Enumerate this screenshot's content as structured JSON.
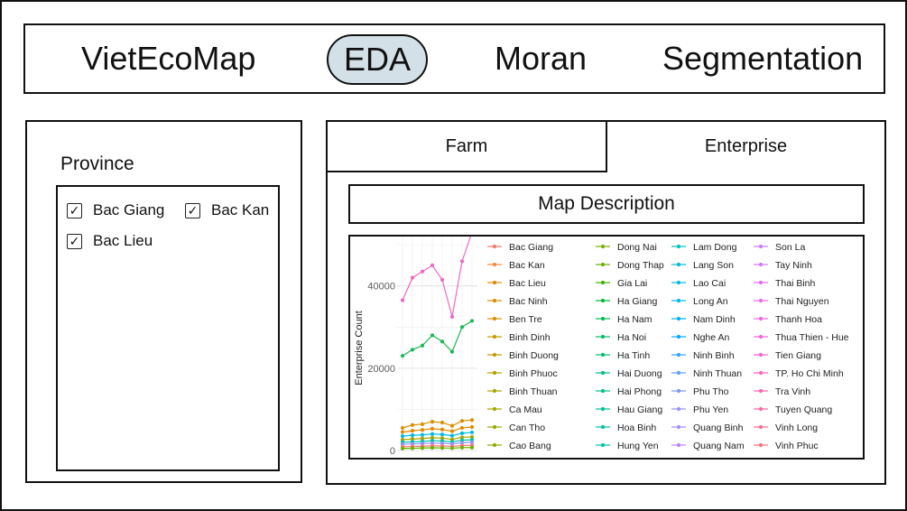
{
  "nav": {
    "items": [
      "VietEcoMap",
      "EDA",
      "Moran",
      "Segmentation"
    ],
    "active": "EDA",
    "active_color": "#d3e0e7"
  },
  "sidebar": {
    "title": "Province",
    "checkboxes": [
      {
        "label": "Bac Giang",
        "checked": true
      },
      {
        "label": "Bac Kan",
        "checked": true
      },
      {
        "label": "Bac Lieu",
        "checked": true
      }
    ]
  },
  "tabs": {
    "items": [
      "Farm",
      "Enterprise"
    ],
    "active": "Enterprise"
  },
  "map_description": {
    "label": "Map Description"
  },
  "chart_data": {
    "type": "line",
    "title": "",
    "xlabel": "",
    "ylabel": "Enterprise Count",
    "yticks": [
      0,
      20000,
      40000
    ],
    "ylim": [
      0,
      52000
    ],
    "grid": true,
    "legend_position": "right",
    "x": [
      1,
      2,
      3,
      4,
      5,
      6,
      7,
      8
    ],
    "series": [
      {
        "name": "Thanh Hoa",
        "color": "#ee67c8",
        "values": [
          36500,
          42000,
          43500,
          45000,
          41500,
          32500,
          46000,
          53000
        ]
      },
      {
        "name": "Ha Giang",
        "color": "#1eb757",
        "values": [
          23000,
          24500,
          25500,
          28000,
          26500,
          24000,
          30000,
          31500
        ]
      },
      {
        "name": "Bac Ninh",
        "color": "#d89000",
        "values": [
          5500,
          6200,
          6400,
          7000,
          6800,
          6000,
          7200,
          7400
        ]
      },
      {
        "name": "Bac Kan",
        "color": "#e38900",
        "values": [
          4500,
          4800,
          5000,
          5300,
          5100,
          4700,
          5500,
          5700
        ]
      },
      {
        "name": "Lao Cai",
        "color": "#00b9e3",
        "values": [
          3500,
          3700,
          3800,
          4000,
          3900,
          3600,
          4200,
          4400
        ]
      },
      {
        "name": "Binh Dinh",
        "color": "#a3a500",
        "values": [
          2600,
          2800,
          2900,
          3100,
          3000,
          2700,
          3200,
          3300
        ]
      },
      {
        "name": "Lam Dong",
        "color": "#00c1aa",
        "values": [
          2000,
          2100,
          2200,
          2400,
          2300,
          2100,
          2500,
          2600
        ]
      },
      {
        "name": "Phu Yen",
        "color": "#9590ff",
        "values": [
          1500,
          1600,
          1700,
          1800,
          1750,
          1600,
          1900,
          2000
        ]
      },
      {
        "name": "Vinh Phuc",
        "color": "#f8766d",
        "values": [
          900,
          1000,
          1050,
          1150,
          1100,
          1000,
          1200,
          1250
        ]
      },
      {
        "name": "Hau Giang",
        "color": "#6bb100",
        "values": [
          500,
          550,
          600,
          650,
          620,
          560,
          700,
          720
        ]
      }
    ],
    "legend": [
      {
        "name": "Bac Giang",
        "color": "#f8766d"
      },
      {
        "name": "Bac Kan",
        "color": "#ee8b3f"
      },
      {
        "name": "Bac Lieu",
        "color": "#e38900"
      },
      {
        "name": "Bac Ninh",
        "color": "#dd8d00"
      },
      {
        "name": "Ben Tre",
        "color": "#d89000"
      },
      {
        "name": "Binh Dinh",
        "color": "#c99800"
      },
      {
        "name": "Binh Duong",
        "color": "#bb9d00"
      },
      {
        "name": "Binh Phuoc",
        "color": "#b3a000"
      },
      {
        "name": "Binh Thuan",
        "color": "#a9a300"
      },
      {
        "name": "Ca Mau",
        "color": "#a3a500"
      },
      {
        "name": "Can Tho",
        "color": "#9aa800"
      },
      {
        "name": "Cao Bang",
        "color": "#91aa00"
      },
      {
        "name": "Dong Nai",
        "color": "#7cae00"
      },
      {
        "name": "Dong Thap",
        "color": "#6bb100"
      },
      {
        "name": "Gia Lai",
        "color": "#39b600"
      },
      {
        "name": "Ha Giang",
        "color": "#00ba38"
      },
      {
        "name": "Ha Nam",
        "color": "#00bc51"
      },
      {
        "name": "Ha Noi",
        "color": "#00bd63"
      },
      {
        "name": "Ha Tinh",
        "color": "#00be72"
      },
      {
        "name": "Hai Duong",
        "color": "#00bf7d"
      },
      {
        "name": "Hai Phong",
        "color": "#00c08b"
      },
      {
        "name": "Hau Giang",
        "color": "#00c097"
      },
      {
        "name": "Hoa Binh",
        "color": "#00c1a3"
      },
      {
        "name": "Hung Yen",
        "color": "#00c1aa"
      },
      {
        "name": "Lam Dong",
        "color": "#00bfc4"
      },
      {
        "name": "Lang Son",
        "color": "#00bdd0"
      },
      {
        "name": "Lao Cai",
        "color": "#00b9e3"
      },
      {
        "name": "Long An",
        "color": "#00b4ef"
      },
      {
        "name": "Nam Dinh",
        "color": "#00b0f6"
      },
      {
        "name": "Nghe An",
        "color": "#00a9ff"
      },
      {
        "name": "Ninh Binh",
        "color": "#35a2ff"
      },
      {
        "name": "Ninh Thuan",
        "color": "#619cff"
      },
      {
        "name": "Phu Tho",
        "color": "#7997ff"
      },
      {
        "name": "Phu Yen",
        "color": "#9590ff"
      },
      {
        "name": "Quang Binh",
        "color": "#a58aff"
      },
      {
        "name": "Quang Nam",
        "color": "#b983ff"
      },
      {
        "name": "Son La",
        "color": "#c77cff"
      },
      {
        "name": "Tay Ninh",
        "color": "#d376ff"
      },
      {
        "name": "Thai Binh",
        "color": "#e76bf3"
      },
      {
        "name": "Thai Nguyen",
        "color": "#ef67eb"
      },
      {
        "name": "Thanh Hoa",
        "color": "#f564e3"
      },
      {
        "name": "Thua Thien - Hue",
        "color": "#fa62db"
      },
      {
        "name": "Tien Giang",
        "color": "#fd61d1"
      },
      {
        "name": "TP. Ho Chi Minh",
        "color": "#ff62bc"
      },
      {
        "name": "Tra Vinh",
        "color": "#ff64b0"
      },
      {
        "name": "Tuyen Quang",
        "color": "#ff67a4"
      },
      {
        "name": "Vinh Long",
        "color": "#ff6c91"
      },
      {
        "name": "Vinh Phuc",
        "color": "#fb727d"
      }
    ]
  }
}
